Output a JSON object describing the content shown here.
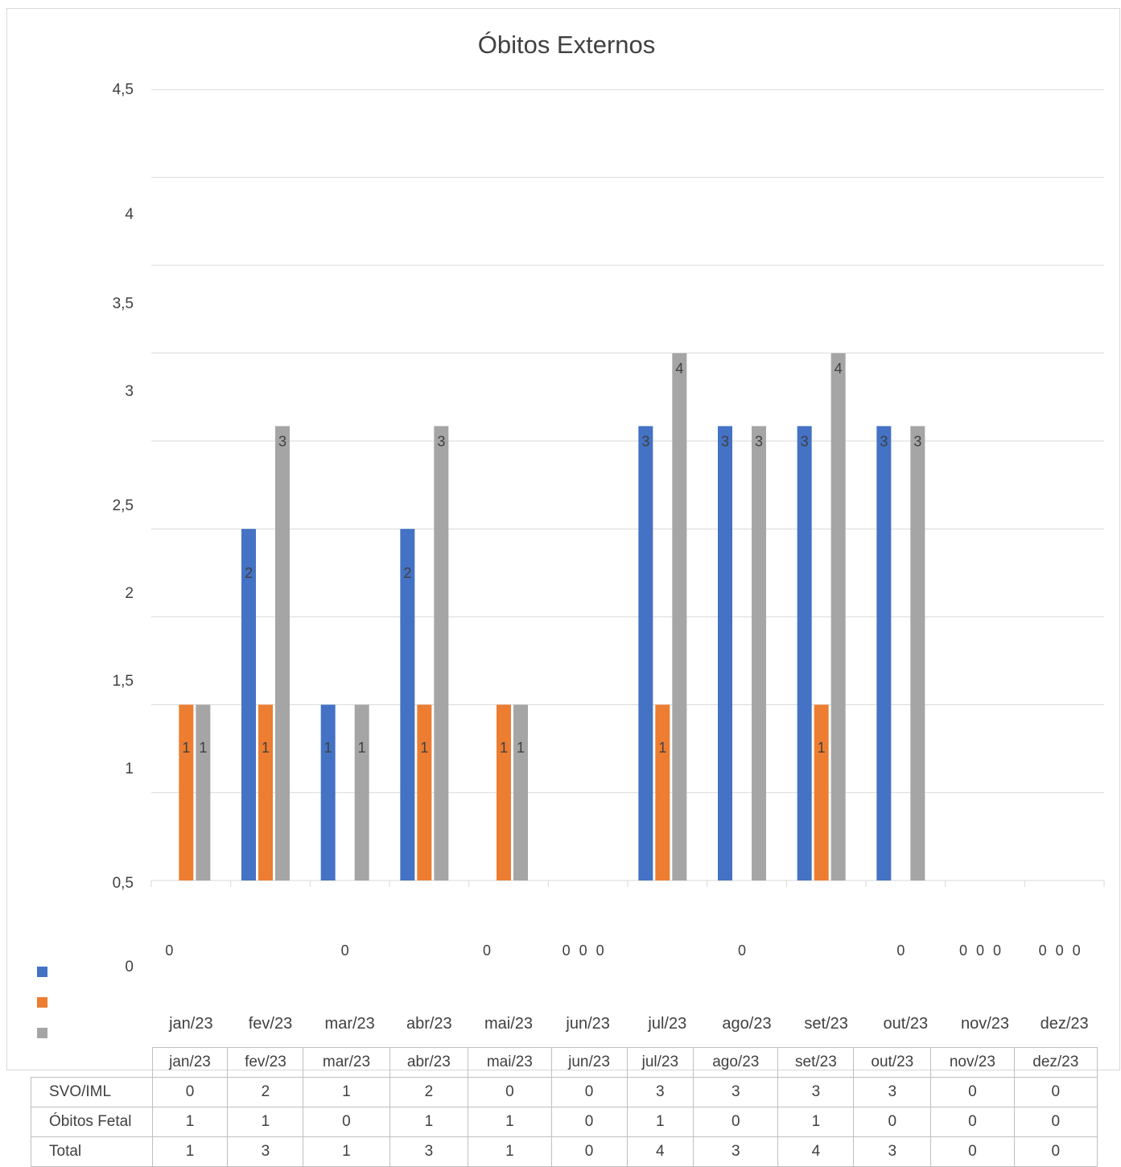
{
  "chart_data": {
    "type": "bar",
    "title": "Óbitos Externos",
    "categories": [
      "jan/23",
      "fev/23",
      "mar/23",
      "abr/23",
      "mai/23",
      "jun/23",
      "jul/23",
      "ago/23",
      "set/23",
      "out/23",
      "nov/23",
      "dez/23"
    ],
    "series": [
      {
        "name": "SVO/IML",
        "color": "#4472c4",
        "values": [
          0,
          2,
          1,
          2,
          0,
          0,
          3,
          3,
          3,
          3,
          0,
          0
        ]
      },
      {
        "name": "Óbitos Fetal",
        "color": "#ed7d31",
        "values": [
          1,
          1,
          0,
          1,
          1,
          0,
          1,
          0,
          1,
          0,
          0,
          0
        ]
      },
      {
        "name": "Total",
        "color": "#a5a5a5",
        "values": [
          1,
          3,
          1,
          3,
          1,
          0,
          4,
          3,
          4,
          3,
          0,
          0
        ]
      }
    ],
    "y_tick_labels": [
      "0",
      "0,5",
      "1",
      "1,5",
      "2",
      "2,5",
      "3",
      "3,5",
      "4",
      "4,5"
    ],
    "y_scale": "log",
    "gridlines": true,
    "legend": "data-table"
  }
}
